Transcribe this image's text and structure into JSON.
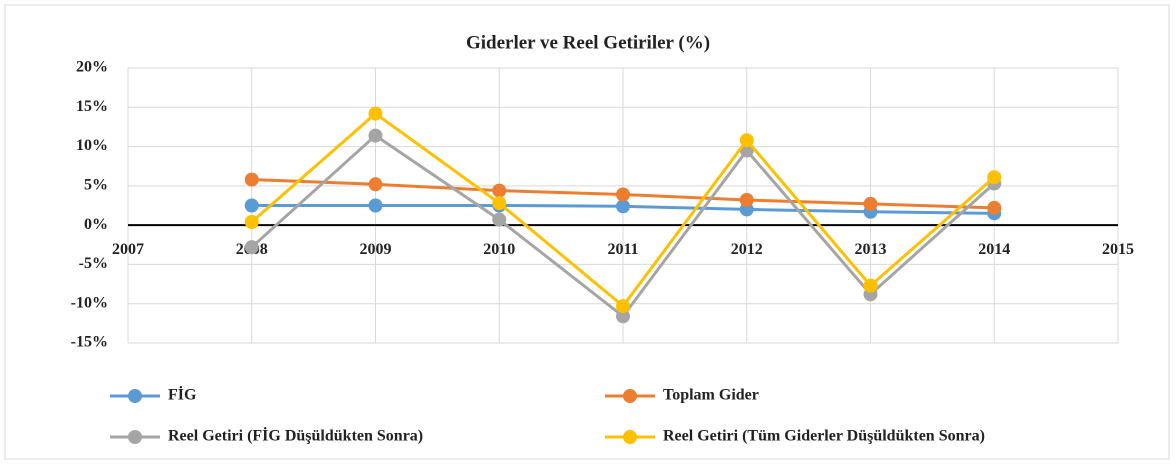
{
  "chart_data": {
    "type": "line",
    "title": "Giderler  ve Reel Getiriler  (%)",
    "x": [
      2008,
      2009,
      2010,
      2011,
      2012,
      2013,
      2014
    ],
    "xlim": [
      2007,
      2015
    ],
    "xticks": [
      2007,
      2008,
      2009,
      2010,
      2011,
      2012,
      2013,
      2014,
      2015
    ],
    "ylim": [
      -15,
      20
    ],
    "yticks": [
      {
        "value": -15,
        "label": "-15%"
      },
      {
        "value": -10,
        "label": "-10%"
      },
      {
        "value": -5,
        "label": "-5%"
      },
      {
        "value": 0,
        "label": "0%"
      },
      {
        "value": 5,
        "label": "5%"
      },
      {
        "value": 10,
        "label": "10%"
      },
      {
        "value": 15,
        "label": "15%"
      },
      {
        "value": 20,
        "label": "20%"
      }
    ],
    "grid": true,
    "legend": "bottom",
    "series": [
      {
        "name": "FİG",
        "color": "#5b9bd5",
        "values": [
          2.5,
          2.5,
          2.5,
          2.4,
          2.0,
          1.7,
          1.5
        ]
      },
      {
        "name": "Toplam Gider",
        "color": "#ed7d31",
        "values": [
          5.8,
          5.2,
          4.4,
          3.9,
          3.2,
          2.7,
          2.2
        ]
      },
      {
        "name": "Reel Getiri (FİG Düşüldükten Sonra)",
        "color": "#a5a5a5",
        "values": [
          -2.8,
          11.4,
          0.7,
          -11.6,
          9.5,
          -8.8,
          5.3
        ]
      },
      {
        "name": "Reel Getiri (Tüm Giderler Düşüldükten Sonra)",
        "color": "#ffc000",
        "values": [
          0.4,
          14.2,
          2.8,
          -10.3,
          10.8,
          -7.7,
          6.1
        ]
      }
    ]
  }
}
